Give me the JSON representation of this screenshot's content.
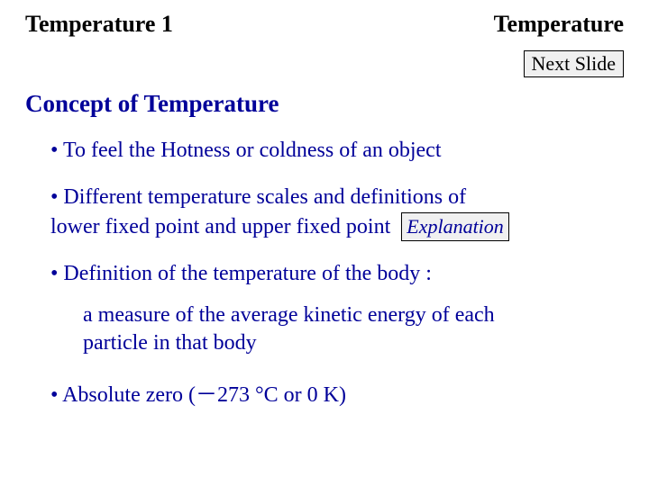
{
  "colors": {
    "text": "#000000",
    "heading": "#000099",
    "button_bg": "#f0f0f0",
    "button_border": "#000000",
    "background": "#ffffff"
  },
  "typography": {
    "family": "Times New Roman",
    "header_size_pt": 20,
    "title_size_pt": 20,
    "body_size_pt": 18,
    "button_size_pt": 16
  },
  "header": {
    "left": "Temperature  1",
    "right": "Temperature"
  },
  "buttons": {
    "next_slide": "Next Slide",
    "explanation": "Explanation"
  },
  "section_title": "Concept of Temperature",
  "bullets": {
    "b1": "• To feel the Hotness or coldness of an object",
    "b2_line1": "• Different temperature scales and definitions of",
    "b2_line2": "lower fixed point and upper fixed point",
    "b3": "• Definition of the temperature of the body :",
    "b3_sub_line1": "a measure of the average kinetic energy of each",
    "b3_sub_line2": "particle in that body",
    "b4": "• Absolute zero (－273 °C or 0 K)"
  }
}
